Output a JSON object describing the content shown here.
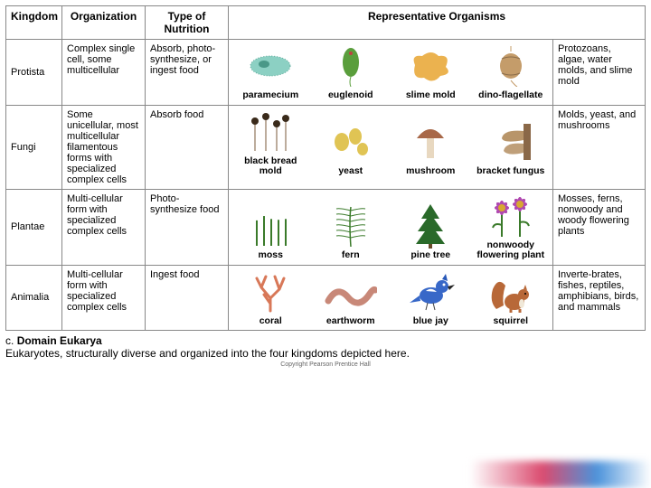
{
  "headers": {
    "kingdom": "Kingdom",
    "organization": "Organization",
    "nutrition": "Type of Nutrition",
    "representative": "Representative Organisms"
  },
  "rows": [
    {
      "kingdom": "Protista",
      "organization": "Complex single cell, some multicellular",
      "nutrition": "Absorb, photo-synthesize, or ingest food",
      "organisms": [
        {
          "label": "paramecium",
          "color": "#78c8b8",
          "shape": "paramecium"
        },
        {
          "label": "euglenoid",
          "color": "#5a9e3c",
          "shape": "euglenoid"
        },
        {
          "label": "slime mold",
          "color": "#e8a430",
          "shape": "slime"
        },
        {
          "label": "dino-flagellate",
          "color": "#c49c6a",
          "shape": "dino"
        }
      ],
      "examples": "Protozoans, algae, water molds, and slime mold"
    },
    {
      "kingdom": "Fungi",
      "organization": "Some unicellular, most multicellular filamentous forms with specialized complex cells",
      "nutrition": "Absorb food",
      "organisms": [
        {
          "label": "black bread mold",
          "color": "#7a5a3a",
          "shape": "mold"
        },
        {
          "label": "yeast",
          "color": "#e0c454",
          "shape": "yeast"
        },
        {
          "label": "mushroom",
          "color": "#a86848",
          "shape": "mushroom"
        },
        {
          "label": "bracket fungus",
          "color": "#b8956a",
          "shape": "bracket"
        }
      ],
      "examples": "Molds, yeast, and mushrooms"
    },
    {
      "kingdom": "Plantae",
      "organization": "Multi-cellular form with specialized complex cells",
      "nutrition": "Photo-synthesize food",
      "organisms": [
        {
          "label": "moss",
          "color": "#3a7a2a",
          "shape": "moss"
        },
        {
          "label": "fern",
          "color": "#3a7a2a",
          "shape": "fern"
        },
        {
          "label": "pine tree",
          "color": "#2a6a2a",
          "shape": "pine"
        },
        {
          "label": "nonwoody flowering plant",
          "color": "#b048b0",
          "shape": "flower"
        }
      ],
      "examples": "Mosses, ferns, nonwoody and woody flowering plants"
    },
    {
      "kingdom": "Animalia",
      "organization": "Multi-cellular form with specialized complex cells",
      "nutrition": "Ingest food",
      "organisms": [
        {
          "label": "coral",
          "color": "#d87858",
          "shape": "coral"
        },
        {
          "label": "earthworm",
          "color": "#c88878",
          "shape": "worm"
        },
        {
          "label": "blue jay",
          "color": "#3868c8",
          "shape": "bird"
        },
        {
          "label": "squirrel",
          "color": "#b86838",
          "shape": "squirrel"
        }
      ],
      "examples": "Inverte-brates, fishes, reptiles, amphibians, birds, and mammals"
    }
  ],
  "caption": {
    "prefix": "c.",
    "title": "Domain Eukarya",
    "text": "Eukaryotes, structurally diverse and organized into the four kingdoms depicted here."
  },
  "copyright": "Copyright Pearson Prentice Hall"
}
